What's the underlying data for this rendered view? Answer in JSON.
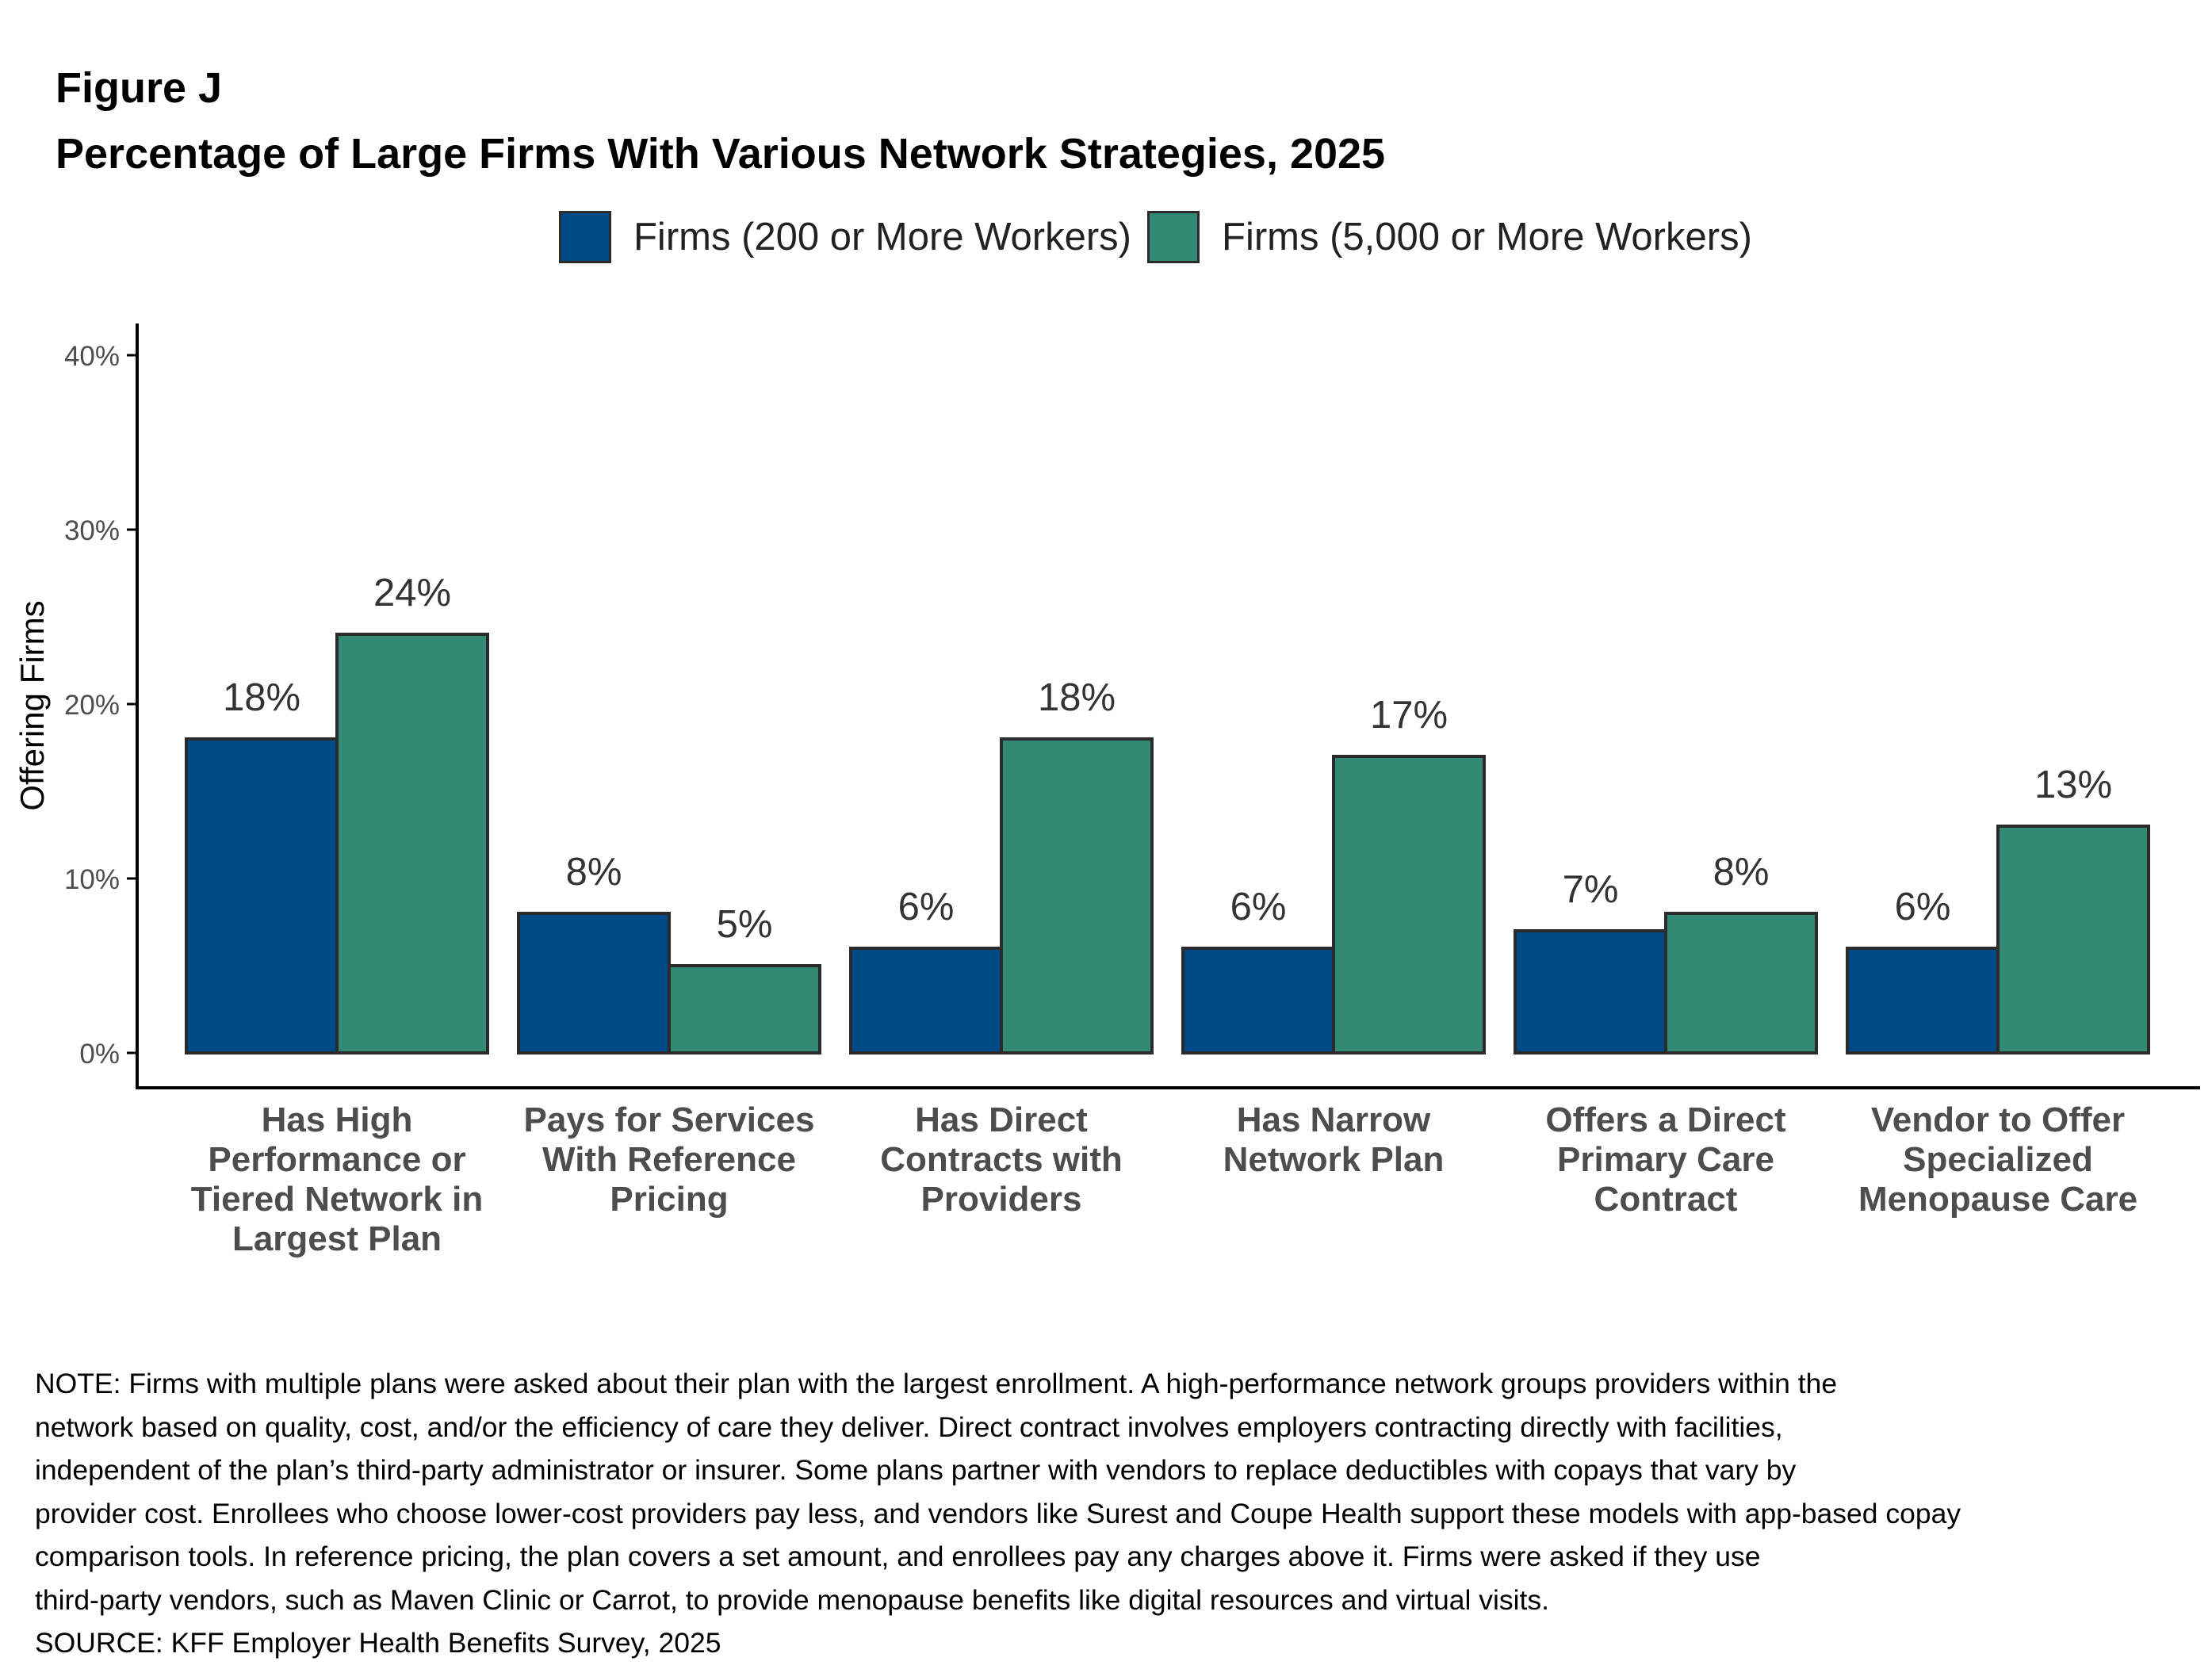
{
  "figure_label": "Figure J",
  "colors": {
    "series1": "#004B87",
    "series2": "#338974",
    "bar_outline": "#2b2b2b",
    "axis": "#000000",
    "tick_text": "#4d4d4d",
    "bold_label": "#4d4d4d"
  },
  "chart_data": {
    "type": "bar",
    "title": "Percentage of Large Firms With Various Network Strategies, 2025",
    "ylabel": "Offering Firms",
    "xlabel": "",
    "ylim": [
      0,
      0.4
    ],
    "yticks": [
      0,
      0.1,
      0.2,
      0.3,
      0.4
    ],
    "ytick_labels": [
      "0%",
      "10%",
      "20%",
      "30%",
      "40%"
    ],
    "grid": false,
    "legend_position": "top",
    "categories": [
      [
        "Has High",
        "Performance or",
        "Tiered Network in",
        "Largest Plan"
      ],
      [
        "Pays for Services",
        "With Reference",
        "Pricing"
      ],
      [
        "Has Direct",
        "Contracts with",
        "Providers"
      ],
      [
        "Has Narrow",
        "Network Plan"
      ],
      [
        "Offers a Direct",
        "Primary Care",
        "Contract"
      ],
      [
        "Vendor to Offer",
        "Specialized",
        "Menopause Care"
      ]
    ],
    "series": [
      {
        "name": "Firms (200 or More Workers)",
        "values": [
          0.18,
          0.08,
          0.06,
          0.06,
          0.07,
          0.06
        ],
        "labels": [
          "18%",
          "8%",
          "6%",
          "6%",
          "7%",
          "6%"
        ]
      },
      {
        "name": "Firms (5,000 or More Workers)",
        "values": [
          0.24,
          0.05,
          0.18,
          0.17,
          0.08,
          0.13
        ],
        "labels": [
          "24%",
          "5%",
          "18%",
          "17%",
          "8%",
          "13%"
        ]
      }
    ]
  },
  "notes": [
    "NOTE: Firms with multiple plans were asked about their plan with the largest enrollment.  A high-performance network groups providers within the",
    "network based on quality, cost, and/or the efficiency of care they deliver.  Direct contract involves employers contracting directly with facilities,",
    "independent of the plan’s third-party administrator or insurer.  Some plans partner with vendors to replace deductibles with copays that vary by",
    "provider cost. Enrollees who choose lower-cost providers pay less, and vendors like Surest and Coupe Health support these models with app-based copay",
    "comparison tools. In reference pricing, the plan covers a set amount, and enrollees pay any charges above it. Firms were asked if they use",
    "third-party vendors, such as Maven Clinic or Carrot, to provide menopause benefits like digital resources and virtual visits.",
    "SOURCE: KFF Employer Health Benefits Survey, 2025"
  ]
}
